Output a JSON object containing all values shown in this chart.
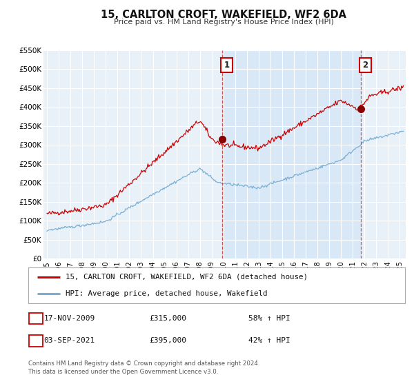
{
  "title": "15, CARLTON CROFT, WAKEFIELD, WF2 6DA",
  "subtitle": "Price paid vs. HM Land Registry's House Price Index (HPI)",
  "ylim": [
    0,
    550000
  ],
  "yticks": [
    0,
    50000,
    100000,
    150000,
    200000,
    250000,
    300000,
    350000,
    400000,
    450000,
    500000,
    550000
  ],
  "ytick_labels": [
    "£0",
    "£50K",
    "£100K",
    "£150K",
    "£200K",
    "£250K",
    "£300K",
    "£350K",
    "£400K",
    "£450K",
    "£500K",
    "£550K"
  ],
  "xlim_start": 1994.7,
  "xlim_end": 2025.5,
  "xtick_years": [
    1995,
    1996,
    1997,
    1998,
    1999,
    2000,
    2001,
    2002,
    2003,
    2004,
    2005,
    2006,
    2007,
    2008,
    2009,
    2010,
    2011,
    2012,
    2013,
    2014,
    2015,
    2016,
    2017,
    2018,
    2019,
    2020,
    2021,
    2022,
    2023,
    2024,
    2025
  ],
  "background_color": "#dce8f5",
  "grid_color": "#ffffff",
  "red_line_color": "#cc0000",
  "blue_line_color": "#7aafd4",
  "sale1_x": 2009.88,
  "sale1_y": 315000,
  "sale1_label": "1",
  "sale2_x": 2021.67,
  "sale2_y": 395000,
  "sale2_label": "2",
  "vline1_x": 2009.88,
  "vline2_x": 2021.67,
  "shade_color": "#dce8f5",
  "legend_line1": "15, CARLTON CROFT, WAKEFIELD, WF2 6DA (detached house)",
  "legend_line2": "HPI: Average price, detached house, Wakefield",
  "table_row1_num": "1",
  "table_row1_date": "17-NOV-2009",
  "table_row1_price": "£315,000",
  "table_row1_hpi": "58% ↑ HPI",
  "table_row2_num": "2",
  "table_row2_date": "03-SEP-2021",
  "table_row2_price": "£395,000",
  "table_row2_hpi": "42% ↑ HPI",
  "footer1": "Contains HM Land Registry data © Crown copyright and database right 2024.",
  "footer2": "This data is licensed under the Open Government Licence v3.0."
}
